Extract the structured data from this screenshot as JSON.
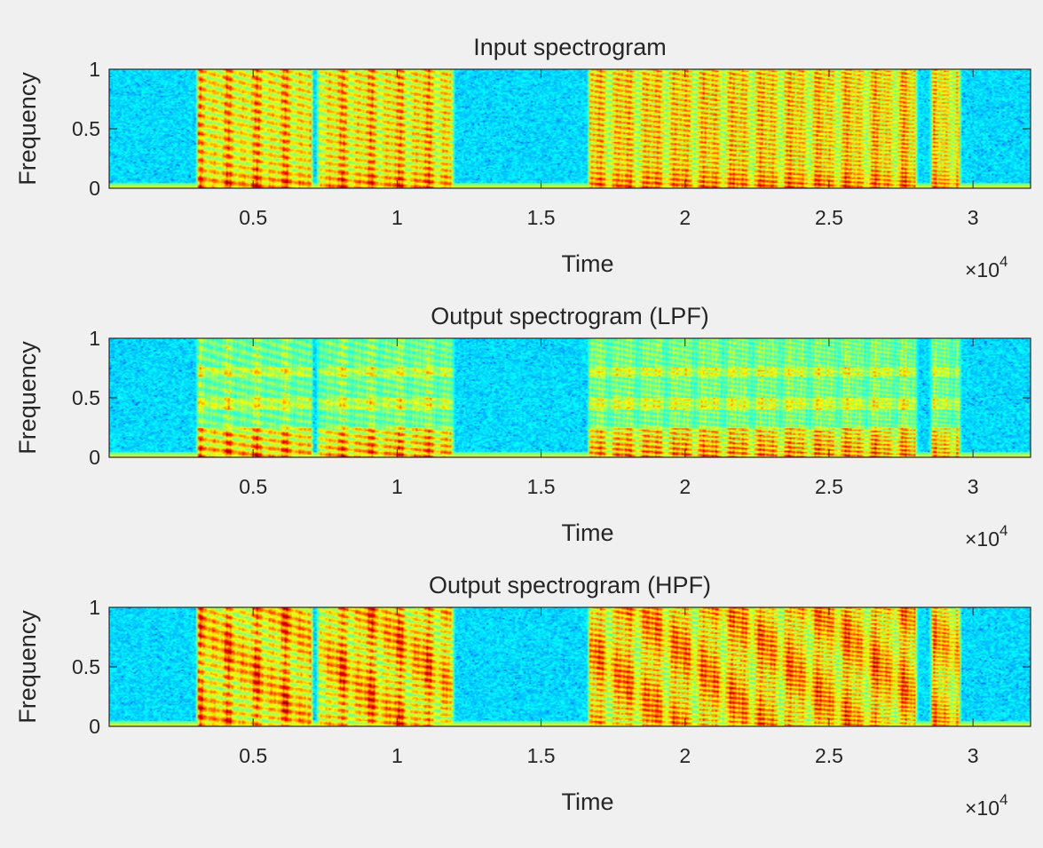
{
  "figure": {
    "background": "#f0f0f0",
    "text_color": "#262626",
    "colormap": "jet"
  },
  "chart_data": [
    {
      "type": "heatmap",
      "title": "Input spectrogram",
      "xlabel": "Time",
      "ylabel": "Frequency",
      "x_exponent_label": "×10",
      "x_exponent": "4",
      "xlim": [
        0.0,
        3.2
      ],
      "ylim": [
        0,
        1
      ],
      "xticks": [
        0.5,
        1,
        1.5,
        2,
        2.5,
        3
      ],
      "xtick_labels": [
        "0.5",
        "1",
        "1.5",
        "2",
        "2.5",
        "3"
      ],
      "yticks": [
        0,
        0.5,
        1
      ],
      "ytick_labels": [
        "0",
        "0.5",
        "1"
      ],
      "speech_segments": [
        [
          0.3,
          0.71
        ],
        [
          0.72,
          1.2
        ],
        [
          1.66,
          2.81
        ],
        [
          2.85,
          2.96
        ]
      ],
      "energy_profile": "broadband",
      "grid": false
    },
    {
      "type": "heatmap",
      "title": "Output spectrogram (LPF)",
      "xlabel": "Time",
      "ylabel": "Frequency",
      "x_exponent_label": "×10",
      "x_exponent": "4",
      "xlim": [
        0.0,
        3.2
      ],
      "ylim": [
        0,
        1
      ],
      "xticks": [
        0.5,
        1,
        1.5,
        2,
        2.5,
        3
      ],
      "xtick_labels": [
        "0.5",
        "1",
        "1.5",
        "2",
        "2.5",
        "3"
      ],
      "yticks": [
        0,
        0.5,
        1
      ],
      "ytick_labels": [
        "0",
        "0.5",
        "1"
      ],
      "speech_segments": [
        [
          0.3,
          0.71
        ],
        [
          0.72,
          1.2
        ],
        [
          1.66,
          2.81
        ],
        [
          2.85,
          2.96
        ]
      ],
      "energy_profile": "lowpass",
      "grid": false
    },
    {
      "type": "heatmap",
      "title": "Output spectrogram (HPF)",
      "xlabel": "Time",
      "ylabel": "Frequency",
      "x_exponent_label": "×10",
      "x_exponent": "4",
      "xlim": [
        0.0,
        3.2
      ],
      "ylim": [
        0,
        1
      ],
      "xticks": [
        0.5,
        1,
        1.5,
        2,
        2.5,
        3
      ],
      "xtick_labels": [
        "0.5",
        "1",
        "1.5",
        "2",
        "2.5",
        "3"
      ],
      "yticks": [
        0,
        0.5,
        1
      ],
      "ytick_labels": [
        "0",
        "0.5",
        "1"
      ],
      "speech_segments": [
        [
          0.3,
          0.71
        ],
        [
          0.72,
          1.2
        ],
        [
          1.66,
          2.81
        ],
        [
          2.85,
          2.96
        ]
      ],
      "energy_profile": "highpass",
      "grid": false
    }
  ]
}
